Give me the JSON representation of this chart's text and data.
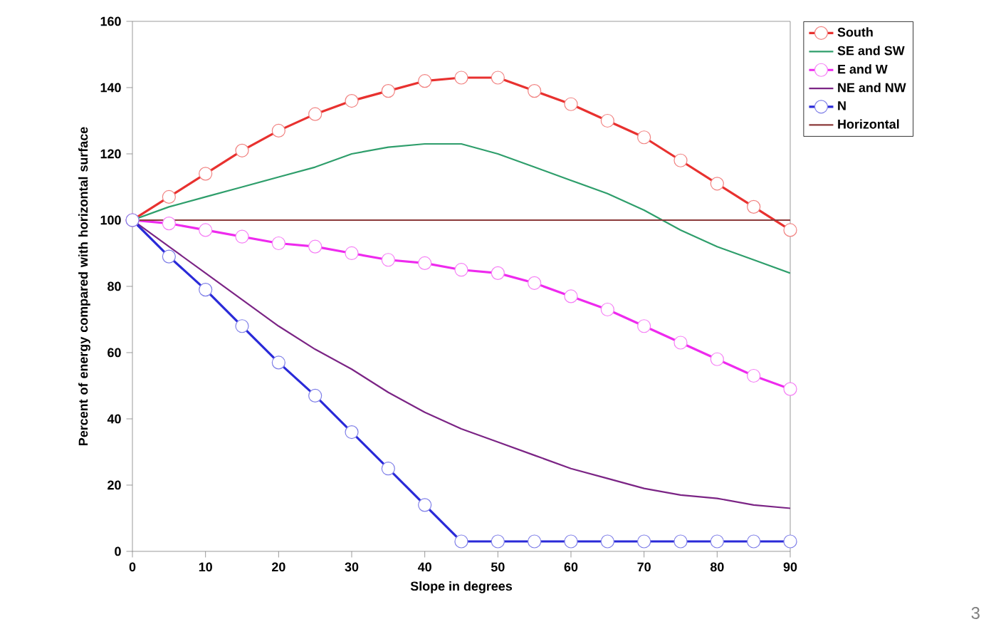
{
  "chart_data": {
    "type": "line",
    "xlabel": "Slope in degrees",
    "ylabel": "Percent of energy compared with horizontal surface",
    "x": [
      0,
      5,
      10,
      15,
      20,
      25,
      30,
      35,
      40,
      45,
      50,
      55,
      60,
      65,
      70,
      75,
      80,
      85,
      90
    ],
    "series": [
      {
        "name": "South",
        "color": "#e8312f",
        "marker": "circle",
        "values": [
          100,
          107,
          114,
          121,
          127,
          132,
          136,
          139,
          142,
          143,
          143,
          139,
          135,
          130,
          125,
          118,
          111,
          104,
          97
        ]
      },
      {
        "name": "SE and SW",
        "color": "#2e9e6b",
        "marker": "none",
        "values": [
          100,
          104,
          107,
          110,
          113,
          116,
          120,
          122,
          123,
          123,
          120,
          116,
          112,
          108,
          103,
          97,
          92,
          88,
          84
        ]
      },
      {
        "name": "E and W",
        "color": "#ee2aee",
        "marker": "circle",
        "values": [
          100,
          99,
          97,
          95,
          93,
          92,
          90,
          88,
          87,
          85,
          84,
          81,
          77,
          73,
          68,
          63,
          58,
          53,
          49
        ]
      },
      {
        "name": "NE and NW",
        "color": "#7b2485",
        "marker": "none",
        "values": [
          100,
          92,
          84,
          76,
          68,
          61,
          55,
          48,
          42,
          37,
          33,
          29,
          25,
          22,
          19,
          17,
          16,
          14,
          13
        ]
      },
      {
        "name": "N",
        "color": "#2a2ad8",
        "marker": "circle",
        "values": [
          100,
          89,
          79,
          68,
          57,
          47,
          36,
          25,
          14,
          3,
          3,
          3,
          3,
          3,
          3,
          3,
          3,
          3,
          3
        ]
      },
      {
        "name": "Horizontal",
        "color": "#8b3a3a",
        "marker": "none",
        "x": [
          0,
          90
        ],
        "values": [
          100,
          100
        ]
      }
    ],
    "xlim": [
      0,
      90
    ],
    "xticks": [
      0,
      10,
      20,
      30,
      40,
      50,
      60,
      70,
      80,
      90
    ],
    "ylim": [
      0,
      160
    ],
    "yticks": [
      0,
      20,
      40,
      60,
      80,
      100,
      120,
      140,
      160
    ],
    "grid": false,
    "legend": "right",
    "annotations": [
      "3"
    ]
  }
}
